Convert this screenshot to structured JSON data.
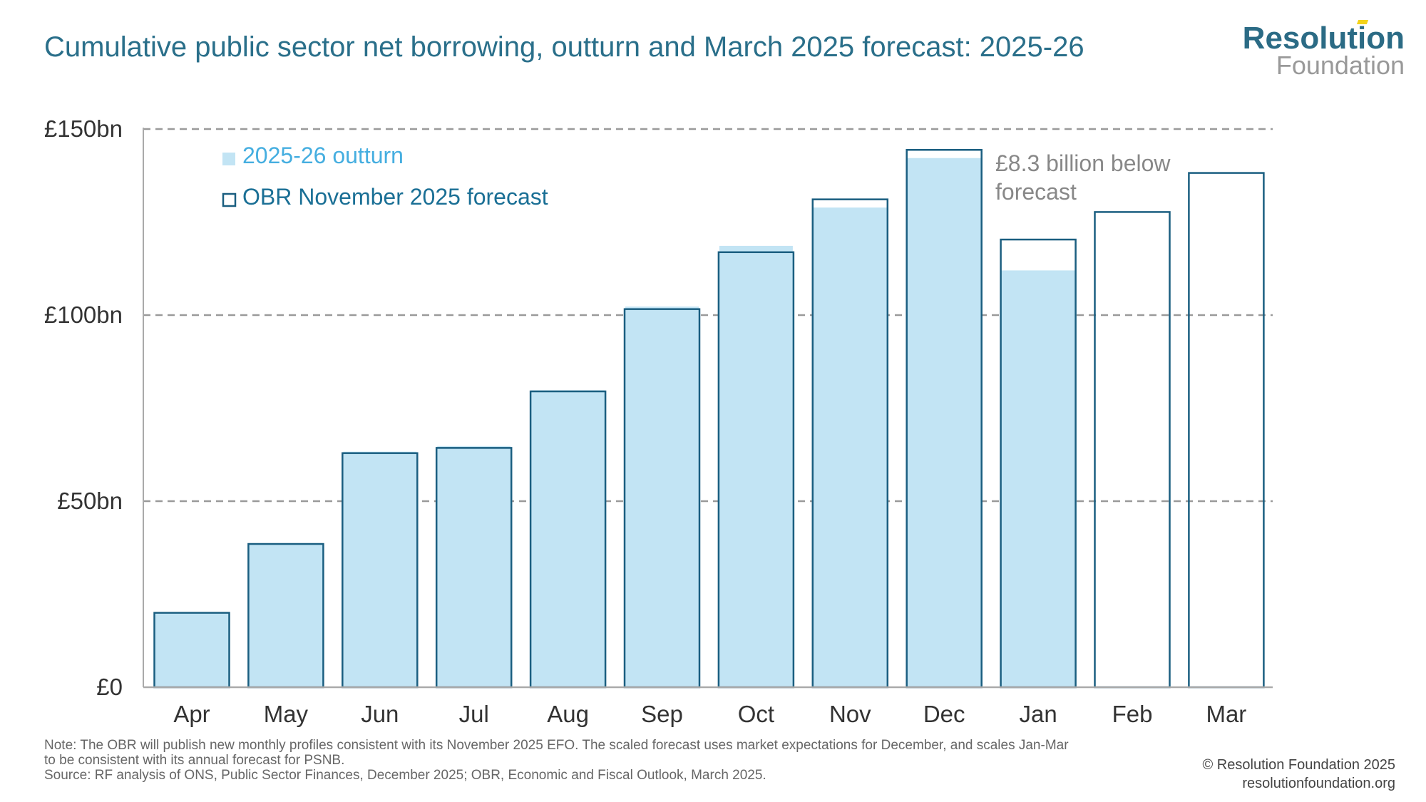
{
  "chart_data": {
    "type": "bar",
    "title": "Cumulative public sector net borrowing, outturn and March 2025 forecast: 2025-26",
    "categories": [
      "Apr",
      "May",
      "Jun",
      "Jul",
      "Aug",
      "Sep",
      "Oct",
      "Nov",
      "Dec",
      "Jan",
      "Feb",
      "Mar"
    ],
    "series": [
      {
        "name": "2025-26 outturn",
        "values": [
          20.1,
          38.6,
          63.3,
          64.8,
          79.8,
          102.3,
          118.6,
          128.9,
          142.2,
          112.0,
          null,
          null
        ],
        "color": "#c2e4f4"
      },
      {
        "name": "OBR November 2025 forecast",
        "values": [
          20.0,
          38.5,
          62.9,
          64.3,
          79.5,
          101.6,
          116.9,
          131.1,
          144.4,
          120.3,
          127.7,
          138.2
        ],
        "color": "#1a5e80"
      }
    ],
    "yticks": [
      0,
      50,
      100,
      150
    ],
    "ytick_labels": [
      "£0",
      "£50bn",
      "£100bn",
      "£150bn"
    ],
    "ylim": [
      0,
      150
    ],
    "grid": true,
    "legend_position": "top-left",
    "annotation": [
      "£8.3 billion below",
      "forecast"
    ],
    "xlabel": "",
    "ylabel": ""
  },
  "logo": {
    "line1": "Resolution",
    "line2": "Foundation"
  },
  "notes": [
    "Note: The OBR will publish new monthly profiles consistent with its November 2025 EFO. The scaled forecast uses market expectations for December, and scales Jan-Mar",
    "to be consistent with its annual forecast for PSNB.",
    "Source: RF analysis of ONS, Public Sector Finances, December 2025; OBR, Economic and Fiscal Outlook, March 2025."
  ],
  "copyright": [
    "© Resolution Foundation 2025",
    "resolutionfoundation.org"
  ]
}
